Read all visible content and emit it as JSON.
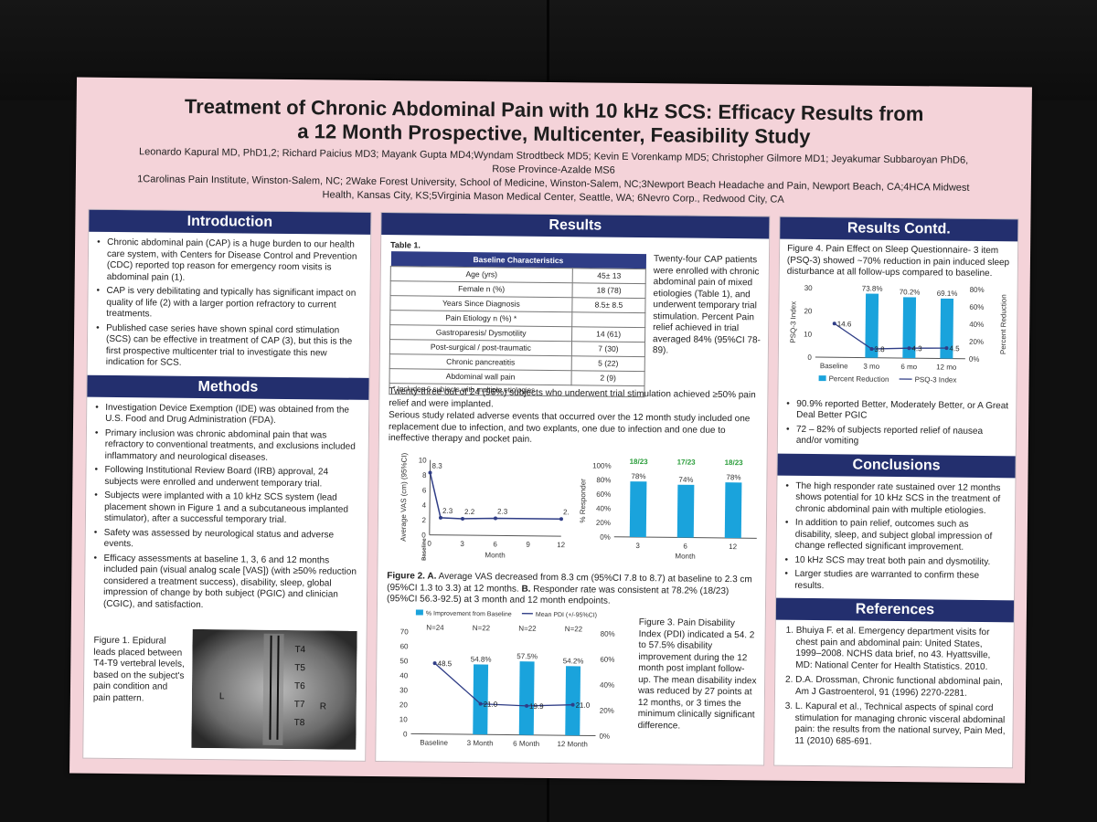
{
  "poster": {
    "title_line1": "Treatment of Chronic Abdominal Pain with 10 kHz SCS: Efficacy Results from",
    "title_line2": "a 12 Month Prospective, Multicenter, Feasibility Study",
    "authors": "Leonardo Kapural MD, PhD1,2; Richard Paicius MD3; Mayank Gupta MD4;Wyndam Strodtbeck MD5; Kevin E Vorenkamp MD5; Christopher Gilmore MD1; Jeyakumar Subbaroyan PhD6, Rose Province-Azalde MS6",
    "affiliations": "1Carolinas Pain Institute, Winston-Salem, NC; 2Wake Forest University, School of Medicine, Winston-Salem, NC;3Newport Beach Headache and Pain, Newport Beach, CA;4HCA Midwest Health, Kansas City, KS;5Virginia Mason Medical Center, Seattle, WA; 6Nevro Corp., Redwood City, CA"
  },
  "introduction": {
    "heading": "Introduction",
    "bullets": [
      "Chronic abdominal pain (CAP) is a huge burden to our health care system, with Centers for Disease Control and Prevention (CDC) reported top reason for emergency room visits is abdominal pain (1).",
      "CAP is very debilitating and typically has significant impact on quality of life (2) with a larger portion refractory to current treatments.",
      "Published case series have shown spinal cord stimulation (SCS) can be effective in treatment of CAP (3), but this is the first prospective multicenter trial to investigate this new indication for SCS."
    ]
  },
  "methods": {
    "heading": "Methods",
    "bullets": [
      "Investigation Device Exemption (IDE) was obtained from the U.S. Food and Drug Administration (FDA).",
      "Primary inclusion was chronic abdominal pain that was refractory to conventional treatments, and exclusions included inflammatory and neurological diseases.",
      "Following Institutional Review Board (IRB) approval, 24 subjects were enrolled and underwent temporary trial.",
      "Subjects were implanted with a 10 kHz SCS system (lead placement shown in Figure 1 and a subcutaneous implanted stimulator), after a successful temporary trial.",
      "Safety was assessed by neurological status and adverse events.",
      "Efficacy assessments at baseline 1, 3, 6 and 12 months included pain (visual analog scale [VAS]) (with ≥50% reduction considered a treatment success), disability, sleep, global impression of change by both subject (PGIC) and clinician (CGIC), and satisfaction."
    ],
    "figure1_caption": "Figure 1. Epidural leads placed between T4-T9 vertebral levels, based on the subject's pain condition and pain pattern.",
    "xray_labels": [
      "T4",
      "T5",
      "T6",
      "T7",
      "T8",
      "L",
      "R"
    ]
  },
  "results": {
    "heading": "Results",
    "table_label": "Table 1.",
    "table_header": "Baseline Characteristics",
    "table_rows": [
      [
        "Age (yrs)",
        "45± 13"
      ],
      [
        "Female n (%)",
        "18 (78)"
      ],
      [
        "Years Since Diagnosis",
        "8.5± 8.5"
      ],
      [
        "Pain Etiology n (%) *",
        ""
      ],
      [
        "Gastroparesis/ Dysmotility",
        "14 (61)"
      ],
      [
        "Post-surgical / post-traumatic",
        "7 (30)"
      ],
      [
        "Chronic pancreatitis",
        "5 (22)"
      ],
      [
        "Abdominal wall pain",
        "2 (9)"
      ]
    ],
    "table_footnote": "* Includes 6 subjects with multiple etiologies",
    "side_text": "Twenty-four CAP patients were enrolled with chronic abdominal pain of mixed etiologies (Table 1), and underwent temporary trial stimulation. Percent Pain relief achieved in trial averaged 84% (95%CI 78-89).",
    "para1": "Twenty-three out of 24 (96%) subjects who underwent trial stimulation achieved ≥50% pain relief and were implanted.",
    "para2": "Serious study related adverse events that occurred over the 12 month study included one replacement due to infection, and two explants, one due to infection and one due to ineffective therapy and pocket pain.",
    "figure2_caption_a": "Figure 2. A.",
    "figure2_caption_text": "Average VAS decreased from 8.3 cm (95%CI 7.8 to 8.7) at baseline to 2.3 cm (95%CI 1.3 to 3.3) at 12 months.",
    "figure2_caption_b": "B.",
    "figure2_caption_text2": "Responder rate was consistent at 78.2% (18/23) (95%CI 56.3-92.5) at 3 month and 12 month endpoints.",
    "figure3_caption": "Figure 3. Pain Disability Index (PDI) indicated a 54. 2 to 57.5% disability improvement during the 12 month post implant follow-up. The mean disability index was reduced by 27 points at 12 months, or 3 times the minimum clinically significant difference."
  },
  "results_contd": {
    "heading": "Results Contd.",
    "figure4_caption": "Figure 4. Pain Effect on Sleep Questionnaire- 3 item (PSQ-3) showed ~70% reduction in pain induced sleep disturbance at all follow-ups compared to baseline.",
    "bullets": [
      "90.9% reported Better, Moderately Better, or A Great Deal Better PGIC",
      "72 – 82% of subjects reported relief of nausea and/or vomiting"
    ]
  },
  "conclusions": {
    "heading": "Conclusions",
    "bullets": [
      "The high responder rate sustained over 12 months shows potential for 10 kHz SCS in the treatment of chronic abdominal pain with multiple etiologies.",
      "In addition to pain relief, outcomes such as disability, sleep, and subject global impression of change reflected significant improvement.",
      "10 kHz SCS may treat both pain and dysmotility.",
      "Larger studies are warranted to confirm these results."
    ]
  },
  "references": {
    "heading": "References",
    "items": [
      "Bhuiya F. et al. Emergency department visits for chest pain and abdominal pain: United States, 1999–2008. NCHS data brief, no 43. Hyattsville, MD: National Center for Health Statistics. 2010.",
      "D.A. Drossman, Chronic functional abdominal pain, Am J Gastroenterol, 91 (1996) 2270-2281.",
      "L. Kapural et al., Technical aspects of spinal cord stimulation for managing chronic visceral abdominal pain: the results from the national survey, Pain Med, 11 (2010) 685-691."
    ]
  },
  "colors": {
    "header": "#232f6e",
    "bar": "#1aa3dc",
    "line": "#2f3d86",
    "poster": "#f4d3d9"
  },
  "chart_data": [
    {
      "id": "fig2a",
      "type": "line",
      "x": [
        0,
        1,
        3,
        6,
        12
      ],
      "values": [
        8.3,
        2.3,
        2.2,
        2.3,
        2.3
      ],
      "point_labels": [
        "8.3",
        "2.3",
        "2.2",
        "2.3",
        "2.3"
      ],
      "xticks": [
        "0",
        "3",
        "6",
        "9",
        "12"
      ],
      "xtick_values": [
        0,
        3,
        6,
        9,
        12
      ],
      "yticks": [
        "0",
        "2",
        "4",
        "6",
        "8",
        "10"
      ],
      "ylim": [
        0,
        10
      ],
      "xlim": [
        0,
        12
      ],
      "ylabel": "Average VAS (cm) (95%CI)",
      "xlabel": "Month",
      "baseline_label": "Baseline"
    },
    {
      "id": "fig2b",
      "type": "bar",
      "categories": [
        "3",
        "6",
        "12"
      ],
      "values": [
        78,
        74,
        78
      ],
      "value_labels": [
        "78%",
        "74%",
        "78%"
      ],
      "top_labels": [
        "18/23",
        "17/23",
        "18/23"
      ],
      "yticks": [
        "0%",
        "20%",
        "40%",
        "60%",
        "80%",
        "100%"
      ],
      "ylim": [
        0,
        100
      ],
      "ylabel": "% Responder",
      "xlabel": "Month"
    },
    {
      "id": "fig3",
      "type": "bar",
      "categories": [
        "Baseline",
        "3 Month",
        "6 Month",
        "12 Month"
      ],
      "bars": [
        null,
        54.8,
        57.5,
        54.2
      ],
      "bar_labels": [
        "",
        "54.8%",
        "57.5%",
        "54.2%"
      ],
      "line": [
        48.5,
        21.0,
        19.9,
        21.0
      ],
      "line_labels": [
        "48.5",
        "21.0",
        "19.9",
        "21.0"
      ],
      "n_labels": [
        "N=24",
        "N=22",
        "N=22",
        "N=22"
      ],
      "left_ylim": [
        0,
        70
      ],
      "left_yticks": [
        "0",
        "10",
        "20",
        "30",
        "40",
        "50",
        "60",
        "70"
      ],
      "right_ylim": [
        0,
        80
      ],
      "right_yticks": [
        "0%",
        "20%",
        "40%",
        "60%",
        "80%"
      ],
      "legend": [
        "% Improvement from Baseline",
        "Mean PDI (+/-95%CI)"
      ]
    },
    {
      "id": "fig4",
      "type": "bar",
      "categories": [
        "Baseline",
        "3 mo",
        "6 mo",
        "12 mo"
      ],
      "bars": [
        null,
        73.8,
        70.2,
        69.1
      ],
      "bar_labels": [
        "",
        "73.8%",
        "70.2%",
        "69.1%"
      ],
      "line": [
        14.6,
        3.8,
        4.3,
        4.5
      ],
      "line_labels": [
        "14.6",
        "3.8",
        "4.3",
        "4.5"
      ],
      "left_ylim": [
        0,
        30
      ],
      "left_yticks": [
        "0",
        "10",
        "20",
        "30"
      ],
      "right_ylim": [
        0,
        80
      ],
      "right_yticks": [
        "0%",
        "20%",
        "40%",
        "60%",
        "80%"
      ],
      "left_label": "PSQ-3 Index",
      "right_label": "Percent Reduction",
      "legend": [
        "Percent Reduction",
        "PSQ-3 Index"
      ]
    }
  ]
}
